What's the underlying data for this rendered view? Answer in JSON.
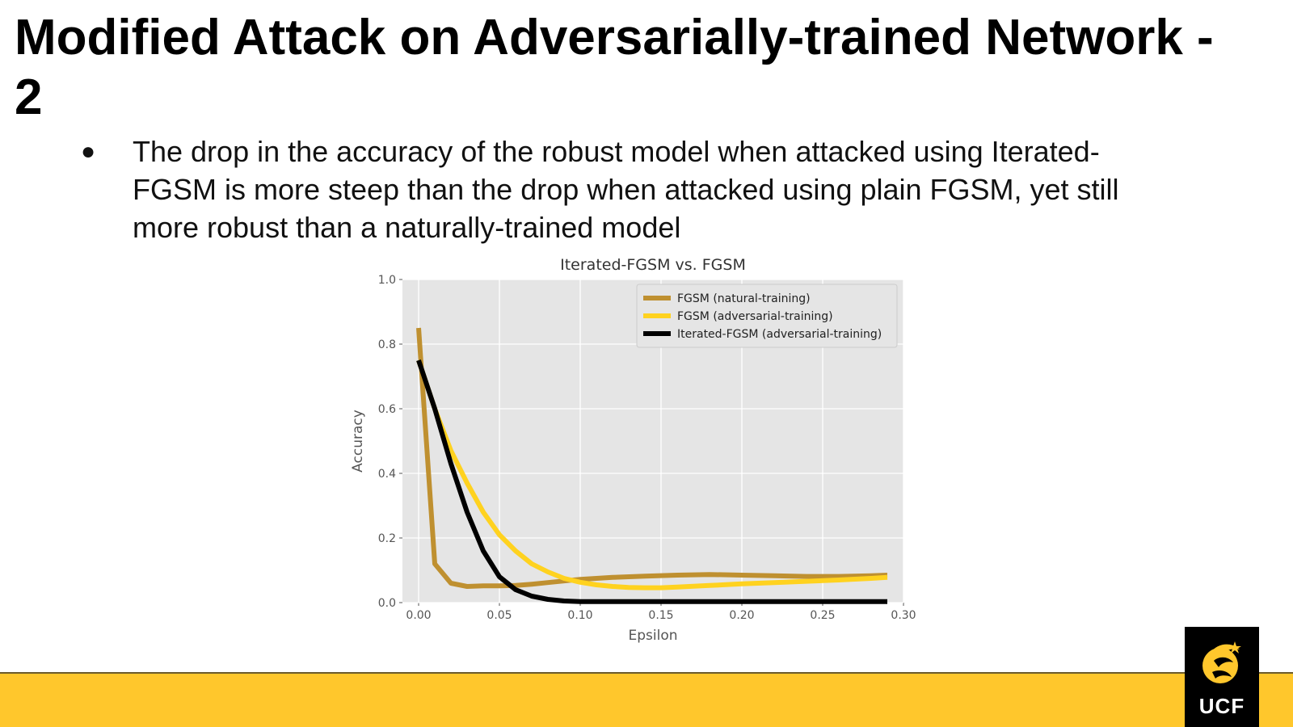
{
  "slide": {
    "title": "Modified Attack on Adversarially-trained Network - 2",
    "bullets": [
      "The drop in the accuracy of the robust model when attacked using Iterated-FGSM is more steep than the drop when attacked using plain FGSM, yet still more robust than a naturally-trained model"
    ]
  },
  "logo": {
    "text": "UCF",
    "icon": "pegasus-logo-icon"
  },
  "colors": {
    "footer": "#ffc72c",
    "logo_bg": "#000000",
    "plot_bg": "#e5e5e5"
  },
  "chart_data": {
    "type": "line",
    "title": "Iterated-FGSM vs. FGSM",
    "xlabel": "Epsilon",
    "ylabel": "Accuracy",
    "xlim": [
      -0.01,
      0.3
    ],
    "ylim": [
      0.0,
      1.0
    ],
    "xticks": [
      "0.00",
      "0.05",
      "0.10",
      "0.15",
      "0.20",
      "0.25",
      "0.30"
    ],
    "yticks": [
      "0.0",
      "0.2",
      "0.4",
      "0.6",
      "0.8",
      "1.0"
    ],
    "grid": true,
    "legend_position": "top-right",
    "series": [
      {
        "name": "FGSM (natural-training)",
        "color": "#bf9030",
        "x": [
          0.0,
          0.01,
          0.02,
          0.03,
          0.04,
          0.05,
          0.06,
          0.07,
          0.08,
          0.09,
          0.1,
          0.12,
          0.14,
          0.16,
          0.18,
          0.2,
          0.22,
          0.24,
          0.26,
          0.28,
          0.29
        ],
        "y": [
          0.85,
          0.12,
          0.06,
          0.05,
          0.052,
          0.052,
          0.053,
          0.057,
          0.062,
          0.067,
          0.072,
          0.078,
          0.082,
          0.085,
          0.087,
          0.085,
          0.083,
          0.081,
          0.081,
          0.083,
          0.085
        ]
      },
      {
        "name": "FGSM (adversarial-training)",
        "color": "#ffd21f",
        "x": [
          0.0,
          0.01,
          0.02,
          0.03,
          0.04,
          0.05,
          0.06,
          0.07,
          0.08,
          0.09,
          0.1,
          0.11,
          0.12,
          0.13,
          0.14,
          0.15,
          0.16,
          0.18,
          0.2,
          0.22,
          0.24,
          0.26,
          0.28,
          0.29
        ],
        "y": [
          0.75,
          0.6,
          0.47,
          0.37,
          0.28,
          0.21,
          0.16,
          0.12,
          0.095,
          0.075,
          0.063,
          0.055,
          0.05,
          0.047,
          0.046,
          0.046,
          0.048,
          0.053,
          0.058,
          0.062,
          0.066,
          0.07,
          0.075,
          0.078
        ]
      },
      {
        "name": "Iterated-FGSM (adversarial-training)",
        "color": "#000000",
        "x": [
          0.0,
          0.01,
          0.02,
          0.03,
          0.04,
          0.05,
          0.06,
          0.07,
          0.08,
          0.09,
          0.1,
          0.15,
          0.2,
          0.25,
          0.29
        ],
        "y": [
          0.75,
          0.6,
          0.43,
          0.28,
          0.16,
          0.08,
          0.04,
          0.02,
          0.01,
          0.005,
          0.003,
          0.003,
          0.003,
          0.003,
          0.003
        ]
      }
    ]
  }
}
